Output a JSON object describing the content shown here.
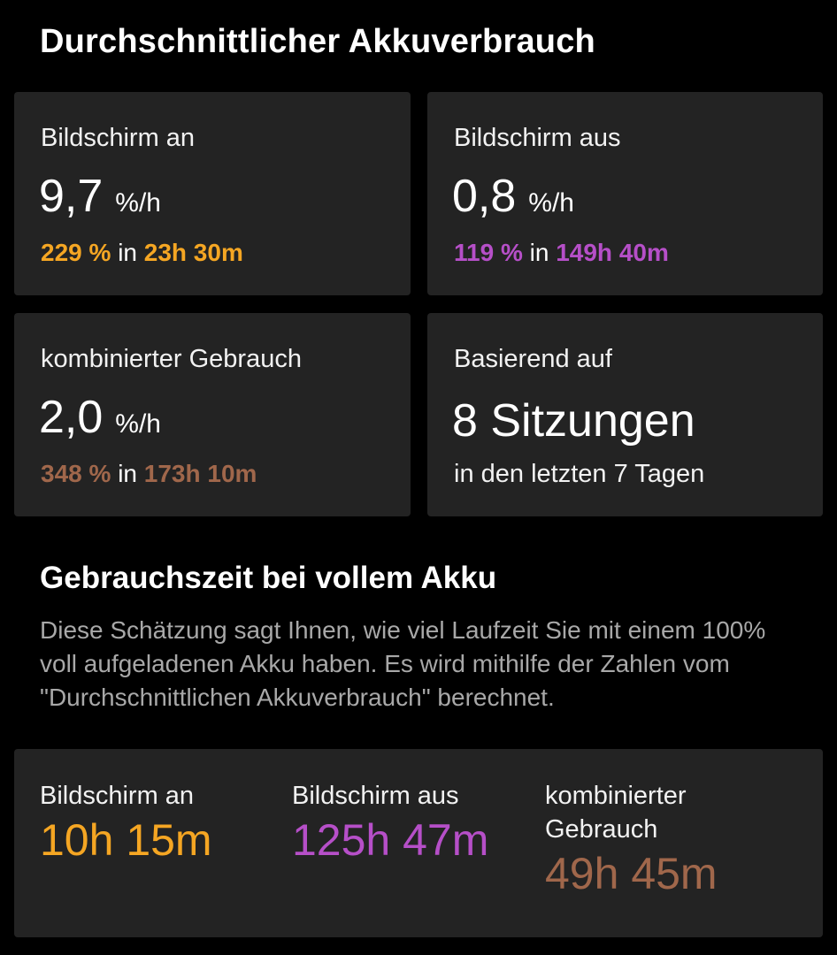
{
  "header": {
    "title": "Durchschnittlicher Akkuverbrauch"
  },
  "colors": {
    "screen_on": "#f5a623",
    "screen_off": "#b64fc8",
    "combined": "#a0674b"
  },
  "cards": {
    "screen_on": {
      "label": "Bildschirm an",
      "value": "9,7",
      "unit": "%/h",
      "percent": "229 %",
      "connector": "in",
      "duration": "23h 30m"
    },
    "screen_off": {
      "label": "Bildschirm aus",
      "value": "0,8",
      "unit": "%/h",
      "percent": "119 %",
      "connector": "in",
      "duration": "149h 40m"
    },
    "combined": {
      "label": "kombinierter Gebrauch",
      "value": "2,0",
      "unit": "%/h",
      "percent": "348 %",
      "connector": "in",
      "duration": "173h 10m"
    },
    "based_on": {
      "label": "Basierend auf",
      "sessions": "8 Sitzungen",
      "period": "in den letzten 7 Tagen"
    }
  },
  "full_charge": {
    "title": "Gebrauchszeit bei vollem Akku",
    "description": "Diese Schätzung sagt Ihnen, wie viel Laufzeit Sie mit einem 100% voll aufgeladenen Akku haben. Es wird mithilfe der Zahlen vom \"Durchschnittlichen Akkuverbrauch\" berechnet.",
    "screen_on": {
      "label": "Bildschirm an",
      "value": "10h 15m"
    },
    "screen_off": {
      "label": "Bildschirm aus",
      "value": "125h 47m"
    },
    "combined": {
      "label_line1": "kombinierter",
      "label_line2": "Gebrauch",
      "value": "49h 45m"
    }
  }
}
